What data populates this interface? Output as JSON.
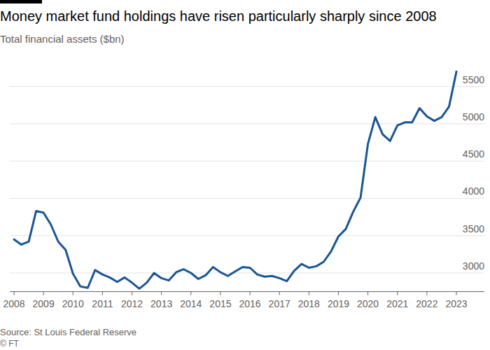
{
  "chart_data": {
    "type": "line",
    "title": "Money market fund holdings have risen particularly sharply since 2008",
    "subtitle": "Total financial assets ($bn)",
    "source": "Source: St Louis Federal Reserve",
    "credit": "© FT",
    "categories": [
      "2008",
      null,
      null,
      null,
      "2009",
      null,
      null,
      null,
      "2010",
      null,
      null,
      null,
      "2011",
      null,
      null,
      null,
      "2012",
      null,
      null,
      null,
      "2013",
      null,
      null,
      null,
      "2014",
      null,
      null,
      null,
      "2015",
      null,
      null,
      null,
      "2016",
      null,
      null,
      null,
      "2017",
      null,
      null,
      null,
      "2018",
      null,
      null,
      null,
      "2019",
      null,
      null,
      null,
      "2020",
      null,
      null,
      null,
      "2021",
      null,
      null,
      null,
      "2022",
      null,
      null,
      null,
      "2023"
    ],
    "values": [
      3450,
      3380,
      3420,
      3830,
      3810,
      3650,
      3420,
      3310,
      2990,
      2820,
      2800,
      3040,
      2980,
      2940,
      2880,
      2940,
      2870,
      2790,
      2870,
      3000,
      2930,
      2900,
      3010,
      3050,
      3000,
      2920,
      2970,
      3080,
      3010,
      2960,
      3020,
      3080,
      3070,
      2980,
      2950,
      2960,
      2930,
      2890,
      3030,
      3120,
      3070,
      3090,
      3150,
      3290,
      3490,
      3590,
      3820,
      4010,
      4730,
      5090,
      4860,
      4770,
      4980,
      5020,
      5020,
      5210,
      5100,
      5040,
      5090,
      5230,
      5700
    ],
    "color": "#1a5596",
    "ylim": [
      2750,
      5750
    ],
    "yticks": [
      3000,
      3500,
      4000,
      4500,
      5000,
      5500
    ],
    "grid": true
  }
}
